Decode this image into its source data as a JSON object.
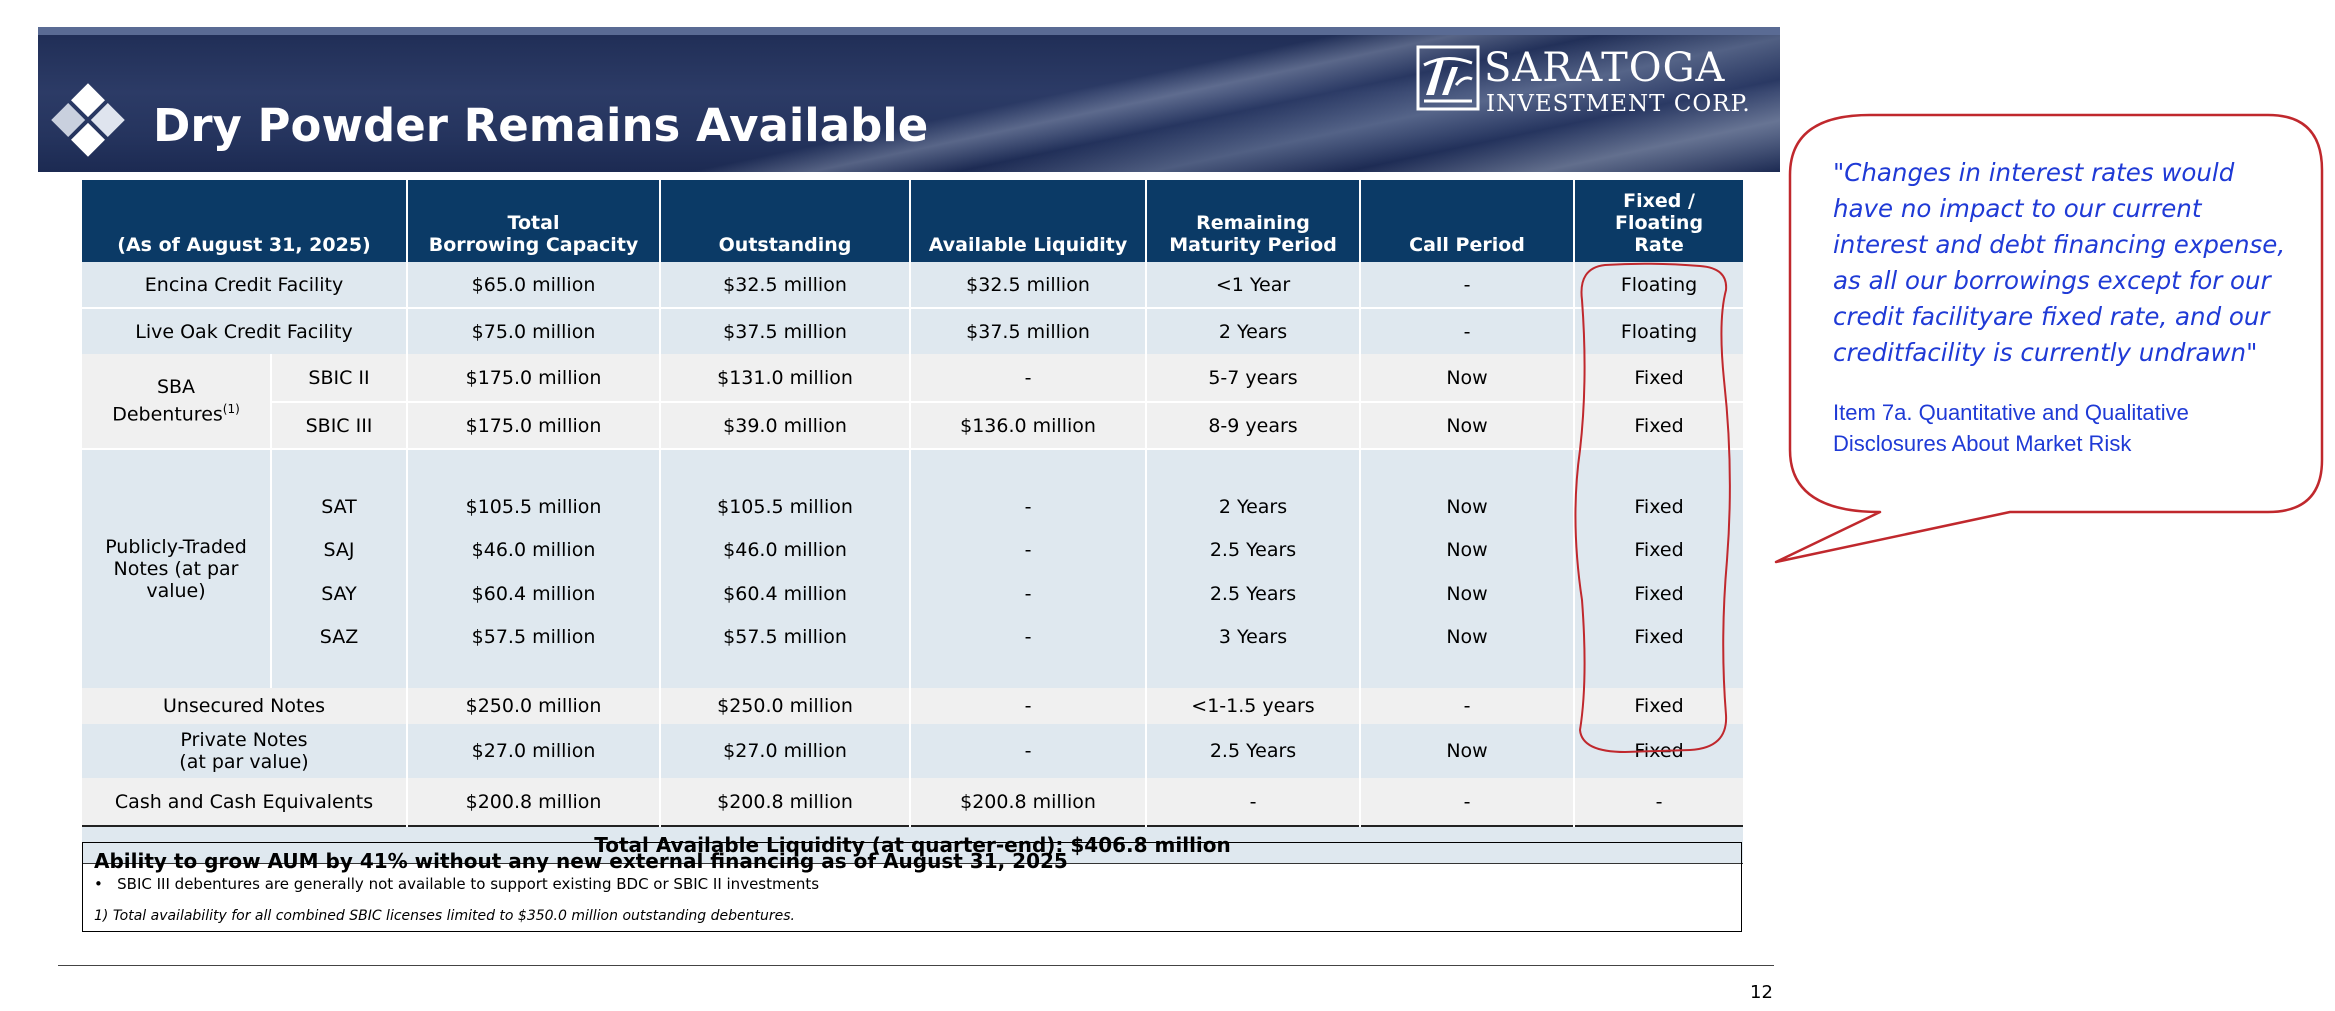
{
  "header": {
    "title": "Dry Powder Remains Available",
    "brand_name": "SARATOGA",
    "brand_sub": "INVESTMENT CORP."
  },
  "table": {
    "headers": {
      "as_of": "(As of August 31, 2025)",
      "total_capacity_line1": "Total",
      "total_capacity_line2": "Borrowing Capacity",
      "outstanding": "Outstanding",
      "available": "Available Liquidity",
      "remaining_line1": "Remaining",
      "remaining_line2": "Maturity Period",
      "call": "Call Period",
      "rate_line1": "Fixed /",
      "rate_line2": "Floating",
      "rate_line3": "Rate"
    },
    "groups": {
      "sba_line1": "SBA",
      "sba_line2": "Debentures",
      "sba_sup": "(1)",
      "public_line1": "Publicly-Traded",
      "public_line2": "Notes (at par",
      "public_line3": "value)"
    },
    "rows": {
      "encina": {
        "label": "Encina Credit Facility",
        "capacity": "$65.0 million",
        "outstanding": "$32.5 million",
        "available": "$32.5 million",
        "maturity": "<1 Year",
        "call": "-",
        "rate": "Floating"
      },
      "liveoak": {
        "label": "Live Oak Credit Facility",
        "capacity": "$75.0 million",
        "outstanding": "$37.5 million",
        "available": "$37.5 million",
        "maturity": "2 Years",
        "call": "-",
        "rate": "Floating"
      },
      "sbic2": {
        "label": "SBIC II",
        "capacity": "$175.0 million",
        "outstanding": "$131.0 million",
        "available": "-",
        "maturity": "5-7 years",
        "call": "Now",
        "rate": "Fixed"
      },
      "sbic3": {
        "label": "SBIC III",
        "capacity": "$175.0 million",
        "outstanding": "$39.0 million",
        "available": "$136.0 million",
        "maturity": "8-9 years",
        "call": "Now",
        "rate": "Fixed"
      },
      "sat": {
        "label": "SAT",
        "capacity": "$105.5 million",
        "outstanding": "$105.5 million",
        "available": "-",
        "maturity": "2 Years",
        "call": "Now",
        "rate": "Fixed"
      },
      "saj": {
        "label": "SAJ",
        "capacity": "$46.0 million",
        "outstanding": "$46.0 million",
        "available": "-",
        "maturity": "2.5 Years",
        "call": "Now",
        "rate": "Fixed"
      },
      "say": {
        "label": "SAY",
        "capacity": "$60.4 million",
        "outstanding": "$60.4 million",
        "available": "-",
        "maturity": "2.5 Years",
        "call": "Now",
        "rate": "Fixed"
      },
      "saz": {
        "label": "SAZ",
        "capacity": "$57.5 million",
        "outstanding": "$57.5 million",
        "available": "-",
        "maturity": "3 Years",
        "call": "Now",
        "rate": "Fixed"
      },
      "unsecured": {
        "label": "Unsecured Notes",
        "capacity": "$250.0 million",
        "outstanding": "$250.0 million",
        "available": "-",
        "maturity": "<1-1.5 years",
        "call": "-",
        "rate": "Fixed"
      },
      "private": {
        "label_line1": "Private Notes",
        "label_line2": "(at par value)",
        "capacity": "$27.0 million",
        "outstanding": "$27.0 million",
        "available": "-",
        "maturity": "2.5 Years",
        "call": "Now",
        "rate": "Fixed"
      },
      "cash": {
        "label": "Cash and Cash Equivalents",
        "capacity": "$200.8 million",
        "outstanding": "$200.8 million",
        "available": "$200.8 million",
        "maturity": "-",
        "call": "-",
        "rate": "-"
      }
    },
    "total": "Total Available Liquidity (at quarter-end): $406.8 million"
  },
  "info_box": {
    "headline": "Ability to grow AUM by 41% without any new external financing as of August 31, 2025",
    "bullet": "SBIC III debentures are generally not available to support existing BDC or SBIC II investments",
    "footnote": "1)   Total availability for all combined SBIC licenses limited to $350.0 million outstanding debentures."
  },
  "page_number": "12",
  "callout": {
    "quote": "\"Changes in interest rates would have no impact to our current interest and debt financing expense, as all our borrowings except for our credit facilityare fixed rate, and our creditfacility is currently undrawn\"",
    "reference": "Item 7a. Quantitative and Qualitative Disclosures About Market Risk",
    "color": "#1f3ad6",
    "outline_color": "#c0282d"
  }
}
